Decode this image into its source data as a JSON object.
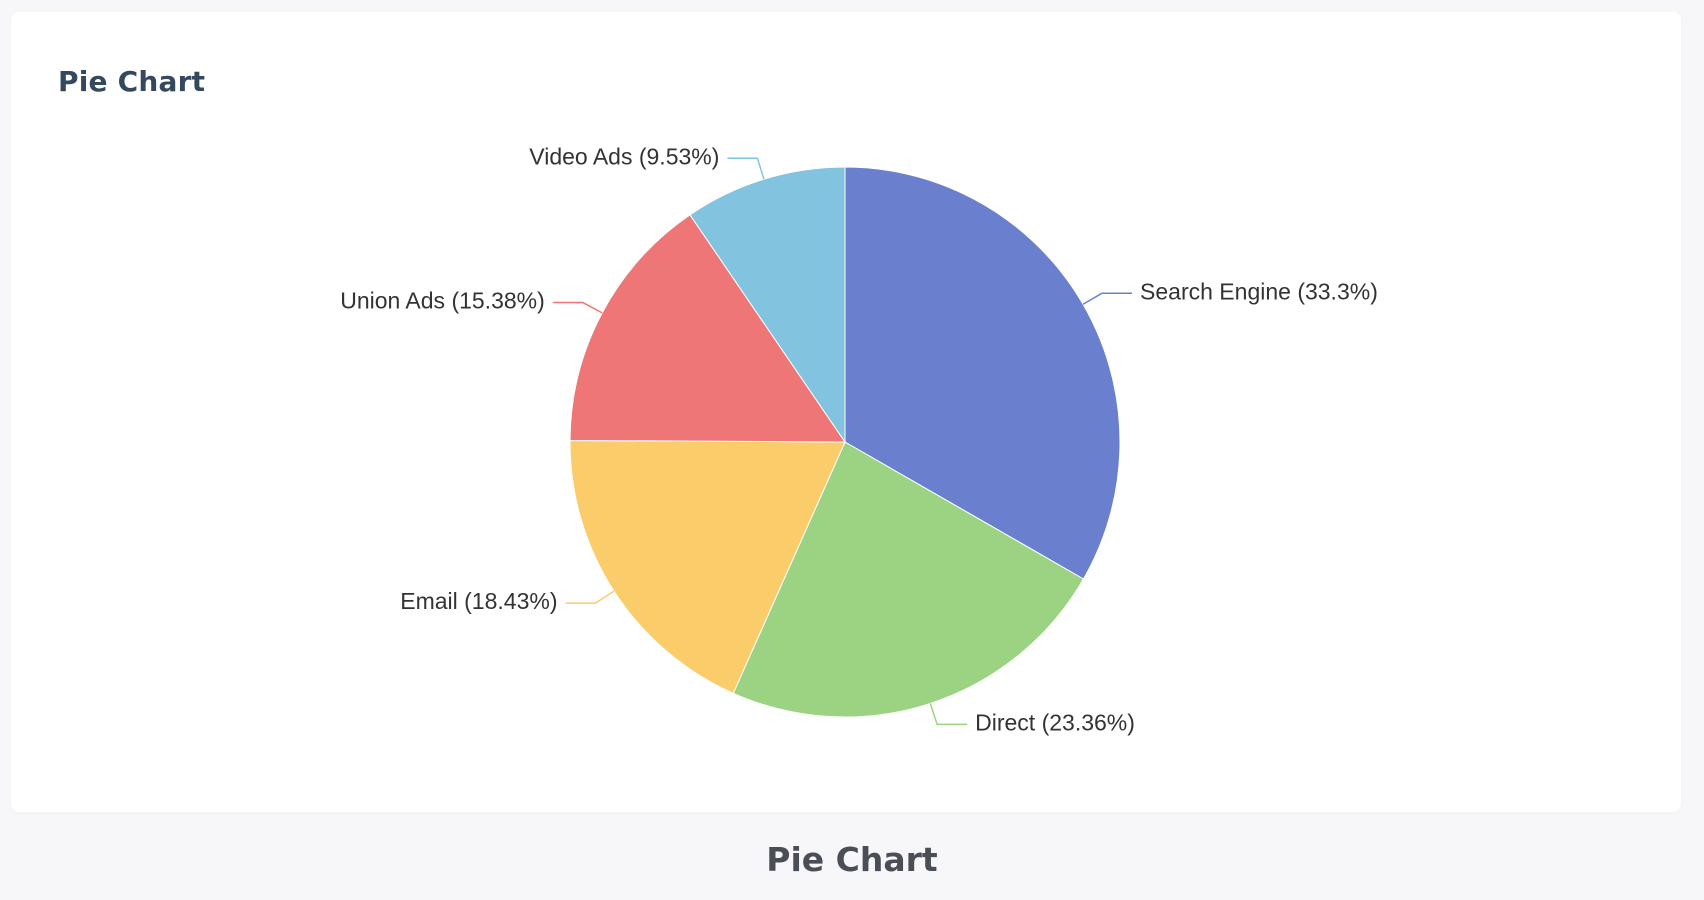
{
  "card": {
    "title": "Pie Chart"
  },
  "footer": {
    "title": "Pie Chart"
  },
  "chart_data": {
    "type": "pie",
    "title": "",
    "start_angle_deg": 90,
    "direction": "clockwise",
    "slices": [
      {
        "name": "Search Engine",
        "value": 33.3,
        "label": "Search Engine (33.3%)",
        "color": "#6a7fcd"
      },
      {
        "name": "Direct",
        "value": 23.36,
        "label": "Direct (23.36%)",
        "color": "#9cd383"
      },
      {
        "name": "Email",
        "value": 18.43,
        "label": "Email (18.43%)",
        "color": "#fbcc6a"
      },
      {
        "name": "Union Ads",
        "value": 15.38,
        "label": "Union Ads (15.38%)",
        "color": "#ef7676"
      },
      {
        "name": "Video Ads",
        "value": 9.53,
        "label": "Video Ads (9.53%)",
        "color": "#82c4e0"
      }
    ]
  }
}
